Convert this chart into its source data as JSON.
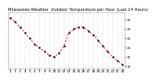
{
  "title": "Milwaukee Weather  Outdoor Temperature per Hour (Last 24 Hours)",
  "hours": [
    1,
    2,
    3,
    4,
    5,
    6,
    7,
    8,
    9,
    10,
    11,
    12,
    13,
    14,
    15,
    16,
    17,
    18,
    19,
    20,
    21,
    22,
    23,
    24
  ],
  "temps": [
    36,
    34,
    31,
    28,
    25,
    22,
    20,
    18,
    16,
    15,
    17,
    21,
    28,
    30,
    31,
    31,
    29,
    27,
    24,
    21,
    18,
    15,
    13,
    11
  ],
  "line_color": "#dd0000",
  "dot_color": "#111111",
  "bg_color": "#ffffff",
  "plot_bg": "#ffffff",
  "grid_color": "#aaaaaa",
  "title_color": "#000000",
  "text_color": "#000000",
  "ylim": [
    9,
    39
  ],
  "yticks": [
    10,
    15,
    20,
    25,
    30,
    35
  ],
  "title_fontsize": 3.8,
  "tick_fontsize": 3.2
}
